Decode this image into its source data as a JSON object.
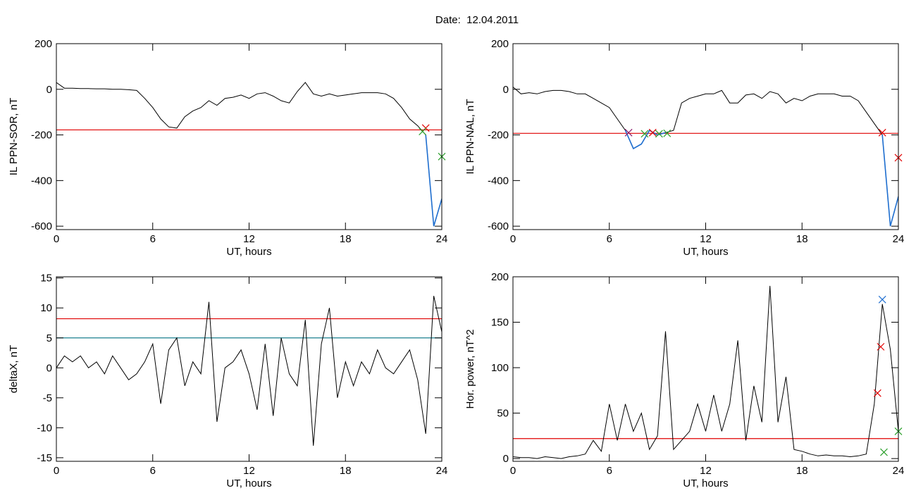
{
  "title": "Date:  12.04.2011",
  "chart_data": [
    {
      "type": "line",
      "ylabel": "IL PPN-SOR, nT",
      "xlabel": "UT, hours",
      "xlim": [
        0,
        24
      ],
      "xticks": [
        0,
        6,
        12,
        18,
        24
      ],
      "ylim": [
        -615,
        200
      ],
      "yticks": [
        -600,
        -400,
        -200,
        0,
        200
      ],
      "x": [
        0,
        0.5,
        1,
        1.5,
        2,
        2.5,
        3,
        3.5,
        4,
        4.5,
        5,
        5.5,
        6,
        6.5,
        7,
        7.5,
        8,
        8.5,
        9,
        9.5,
        10,
        10.5,
        11,
        11.5,
        12,
        12.5,
        13,
        13.5,
        14,
        14.5,
        15,
        15.5,
        16,
        16.5,
        17,
        17.5,
        18,
        18.5,
        19,
        19.5,
        20,
        20.5,
        21,
        21.5,
        22,
        22.5,
        23,
        23.5,
        24
      ],
      "series": [
        {
          "color": "#000000",
          "values": [
            30,
            5,
            5,
            3,
            3,
            2,
            2,
            0,
            0,
            -2,
            -5,
            -40,
            -80,
            -130,
            -165,
            -170,
            -120,
            -95,
            -80,
            -50,
            -70,
            -40,
            -35,
            -25,
            -40,
            -20,
            -15,
            -30,
            -50,
            -60,
            -10,
            30,
            -20,
            -30,
            -20,
            -30,
            -25,
            -20,
            -15,
            -15,
            -15,
            -20,
            -40,
            -80,
            -130,
            -160,
            -200,
            -600,
            -480
          ]
        },
        {
          "color": "#1f6fd0",
          "values": [
            null,
            null,
            null,
            null,
            null,
            null,
            null,
            null,
            null,
            null,
            null,
            null,
            null,
            null,
            null,
            null,
            null,
            null,
            null,
            null,
            null,
            null,
            null,
            null,
            null,
            null,
            null,
            null,
            null,
            null,
            null,
            null,
            null,
            null,
            null,
            null,
            null,
            null,
            null,
            null,
            null,
            null,
            null,
            null,
            null,
            null,
            -200,
            -600,
            -480
          ]
        }
      ],
      "hlines": [
        {
          "value": -178,
          "color": "#e00000"
        }
      ],
      "markers": [
        {
          "x": 23,
          "y": -170,
          "color": "#e00000"
        },
        {
          "x": 22.8,
          "y": -185,
          "color": "#2ca02c"
        },
        {
          "x": 24,
          "y": -295,
          "color": "#2ca02c"
        }
      ]
    },
    {
      "type": "line",
      "ylabel": "IL PPN-NAL, nT",
      "xlabel": "UT, hours",
      "xlim": [
        0,
        24
      ],
      "xticks": [
        0,
        6,
        12,
        18,
        24
      ],
      "ylim": [
        -615,
        200
      ],
      "yticks": [
        -600,
        -400,
        -200,
        0,
        200
      ],
      "x": [
        0,
        0.5,
        1,
        1.5,
        2,
        2.5,
        3,
        3.5,
        4,
        4.5,
        5,
        5.5,
        6,
        6.5,
        7,
        7.5,
        8,
        8.5,
        9,
        9.5,
        10,
        10.5,
        11,
        11.5,
        12,
        12.5,
        13,
        13.5,
        14,
        14.5,
        15,
        15.5,
        16,
        16.5,
        17,
        17.5,
        18,
        18.5,
        19,
        19.5,
        20,
        20.5,
        21,
        21.5,
        22,
        22.5,
        23,
        23.5,
        24
      ],
      "series": [
        {
          "color": "#000000",
          "values": [
            10,
            -20,
            -15,
            -20,
            -10,
            -5,
            -5,
            -10,
            -20,
            -20,
            -40,
            -60,
            -80,
            -130,
            -180,
            -260,
            -240,
            -180,
            -200,
            -190,
            -180,
            -60,
            -40,
            -30,
            -20,
            -20,
            -5,
            -60,
            -60,
            -25,
            -20,
            -40,
            -10,
            -20,
            -60,
            -40,
            -50,
            -30,
            -20,
            -20,
            -20,
            -30,
            -30,
            -50,
            -100,
            -150,
            -200,
            -600,
            -470
          ]
        },
        {
          "color": "#1f6fd0",
          "values": [
            null,
            null,
            null,
            null,
            null,
            null,
            null,
            null,
            null,
            null,
            null,
            null,
            null,
            null,
            -180,
            -260,
            -240,
            -180,
            -200,
            -190,
            null,
            null,
            null,
            null,
            null,
            null,
            null,
            null,
            null,
            null,
            null,
            null,
            null,
            null,
            null,
            null,
            null,
            null,
            null,
            null,
            null,
            null,
            null,
            null,
            null,
            null,
            -200,
            -600,
            -470
          ]
        }
      ],
      "hlines": [
        {
          "value": -193,
          "color": "#e00000"
        }
      ],
      "markers": [
        {
          "x": 7.2,
          "y": -190,
          "color": "#8b1a6b"
        },
        {
          "x": 8.2,
          "y": -195,
          "color": "#2ca02c"
        },
        {
          "x": 8.7,
          "y": -190,
          "color": "#e00000"
        },
        {
          "x": 9.1,
          "y": -195,
          "color": "#2ca02c"
        },
        {
          "x": 9.6,
          "y": -193,
          "color": "#2ca02c"
        },
        {
          "x": 23,
          "y": -190,
          "color": "#e00000"
        },
        {
          "x": 24,
          "y": -300,
          "color": "#e00000"
        }
      ]
    },
    {
      "type": "line",
      "ylabel": "deltaX, nT",
      "xlabel": "UT, hours",
      "xlim": [
        0,
        24
      ],
      "xticks": [
        0,
        6,
        12,
        18,
        24
      ],
      "ylim": [
        -15.6,
        15.2
      ],
      "yticks": [
        -15,
        -10,
        -5,
        0,
        5,
        10,
        15
      ],
      "x": [
        0,
        0.5,
        1,
        1.5,
        2,
        2.5,
        3,
        3.5,
        4,
        4.5,
        5,
        5.5,
        6,
        6.5,
        7,
        7.5,
        8,
        8.5,
        9,
        9.5,
        10,
        10.5,
        11,
        11.5,
        12,
        12.5,
        13,
        13.5,
        14,
        14.5,
        15,
        15.5,
        16,
        16.5,
        17,
        17.5,
        18,
        18.5,
        19,
        19.5,
        20,
        20.5,
        21,
        21.5,
        22,
        22.5,
        23,
        23.5,
        24
      ],
      "series": [
        {
          "color": "#000000",
          "values": [
            0,
            2,
            1,
            2,
            0,
            1,
            -1,
            2,
            0,
            -2,
            -1,
            1,
            4,
            -6,
            3,
            5,
            -3,
            1,
            -1,
            11,
            -9,
            0,
            1,
            3,
            -1,
            -7,
            4,
            -8,
            5,
            -1,
            -3,
            8,
            -13,
            4,
            10,
            -5,
            1,
            -3,
            1,
            -1,
            3,
            0,
            -1,
            1,
            3,
            -2,
            -11,
            12,
            6
          ]
        }
      ],
      "hlines": [
        {
          "value": 8.2,
          "color": "#e00000"
        },
        {
          "value": 5.0,
          "color": "#1a7f8f"
        }
      ],
      "markers": []
    },
    {
      "type": "line",
      "ylabel": "Hor. power, nT^2",
      "xlabel": "UT, hours",
      "xlim": [
        0,
        24
      ],
      "xticks": [
        0,
        6,
        12,
        18,
        24
      ],
      "ylim": [
        -3,
        200
      ],
      "yticks": [
        0,
        50,
        100,
        150,
        200
      ],
      "x": [
        0,
        0.5,
        1,
        1.5,
        2,
        2.5,
        3,
        3.5,
        4,
        4.5,
        5,
        5.5,
        6,
        6.5,
        7,
        7.5,
        8,
        8.5,
        9,
        9.5,
        10,
        10.5,
        11,
        11.5,
        12,
        12.5,
        13,
        13.5,
        14,
        14.5,
        15,
        15.5,
        16,
        16.5,
        17,
        17.5,
        18,
        18.5,
        19,
        19.5,
        20,
        20.5,
        21,
        21.5,
        22,
        22.5,
        23,
        23.5,
        24
      ],
      "series": [
        {
          "color": "#000000",
          "values": [
            2,
            1,
            1,
            0,
            2,
            1,
            0,
            2,
            3,
            5,
            20,
            8,
            60,
            20,
            60,
            30,
            50,
            10,
            25,
            140,
            10,
            20,
            30,
            60,
            30,
            70,
            30,
            60,
            130,
            20,
            80,
            40,
            190,
            40,
            90,
            10,
            8,
            5,
            3,
            4,
            3,
            3,
            2,
            3,
            5,
            60,
            170,
            120,
            30
          ]
        }
      ],
      "hlines": [
        {
          "value": 22,
          "color": "#e00000"
        }
      ],
      "markers": [
        {
          "x": 23,
          "y": 175,
          "color": "#1f6fd0"
        },
        {
          "x": 22.9,
          "y": 123,
          "color": "#e00000"
        },
        {
          "x": 22.7,
          "y": 72,
          "color": "#e00000"
        },
        {
          "x": 23.1,
          "y": 7,
          "color": "#2ca02c"
        },
        {
          "x": 24,
          "y": 30,
          "color": "#2ca02c"
        }
      ]
    }
  ]
}
